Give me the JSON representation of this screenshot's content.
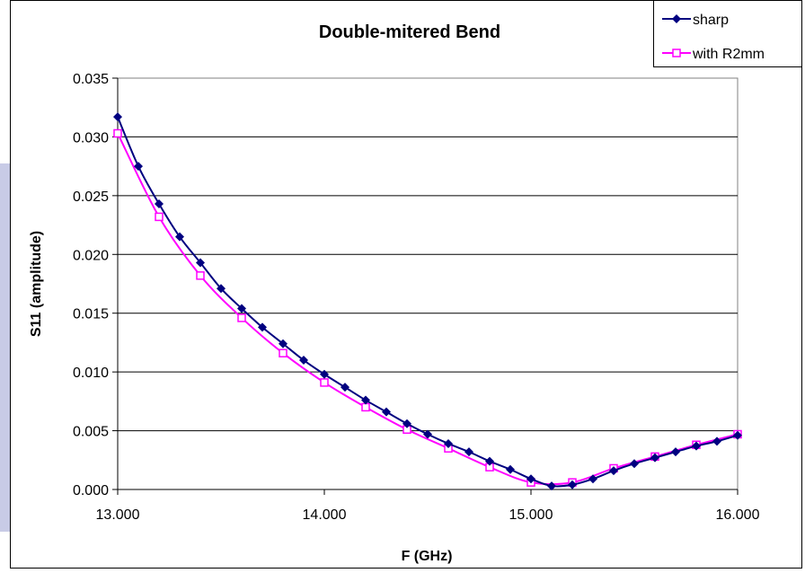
{
  "chart_data": {
    "type": "line",
    "title": "Double-mitered Bend",
    "xlabel": "F (GHz)",
    "ylabel": "S11  (amplitude)",
    "xlim": [
      13.0,
      16.0
    ],
    "ylim": [
      0.0,
      0.035
    ],
    "x_ticks": [
      "13.000",
      "14.000",
      "15.000",
      "16.000"
    ],
    "y_ticks": [
      "0.000",
      "0.005",
      "0.010",
      "0.015",
      "0.020",
      "0.025",
      "0.030",
      "0.035"
    ],
    "grid": true,
    "legend_position": "top-right",
    "series": [
      {
        "name": "sharp",
        "color": "#000080",
        "marker": "diamond",
        "x": [
          13.0,
          13.1,
          13.2,
          13.3,
          13.4,
          13.5,
          13.6,
          13.7,
          13.8,
          13.9,
          14.0,
          14.1,
          14.2,
          14.3,
          14.4,
          14.5,
          14.6,
          14.7,
          14.8,
          14.9,
          15.0,
          15.1,
          15.2,
          15.3,
          15.4,
          15.5,
          15.6,
          15.7,
          15.8,
          15.9,
          16.0
        ],
        "values": [
          0.0317,
          0.0275,
          0.0243,
          0.0215,
          0.0193,
          0.0171,
          0.0154,
          0.0138,
          0.0124,
          0.011,
          0.0098,
          0.0087,
          0.0076,
          0.0066,
          0.0056,
          0.0047,
          0.0039,
          0.0032,
          0.0024,
          0.0017,
          0.0009,
          0.0003,
          0.0004,
          0.0009,
          0.0016,
          0.0022,
          0.0027,
          0.0032,
          0.0037,
          0.0041,
          0.0046
        ]
      },
      {
        "name": "with R2mm",
        "color": "#ff00ff",
        "marker": "square",
        "x": [
          13.0,
          13.2,
          13.4,
          13.6,
          13.8,
          14.0,
          14.2,
          14.4,
          14.6,
          14.8,
          15.0,
          15.2,
          15.4,
          15.6,
          15.8,
          16.0
        ],
        "values": [
          0.0303,
          0.0232,
          0.0182,
          0.0146,
          0.0116,
          0.0091,
          0.007,
          0.0051,
          0.0035,
          0.0019,
          0.0006,
          0.0006,
          0.0018,
          0.0028,
          0.0038,
          0.0047
        ]
      }
    ]
  }
}
